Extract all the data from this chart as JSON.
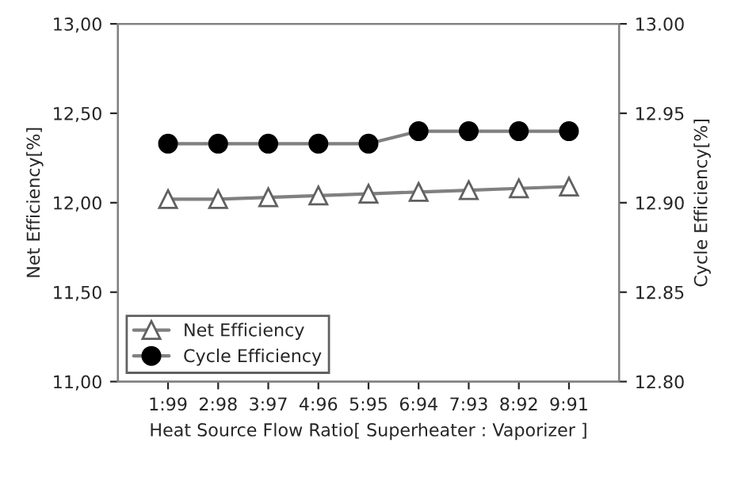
{
  "chart_data": {
    "type": "line",
    "xlabel": "Heat Source Flow Ratio[ Superheater : Vaporizer ]",
    "ylabel": "Net Efficiency[%]",
    "y2label": "Cycle Efficiency[%]",
    "categories": [
      "1:99",
      "2:98",
      "3:97",
      "4:96",
      "5:95",
      "6:94",
      "7:93",
      "8:92",
      "9:91"
    ],
    "series": [
      {
        "name": "Net Efficiency",
        "color": "#808080",
        "marker": "triangle",
        "values": [
          12.02,
          12.02,
          12.03,
          12.04,
          12.05,
          12.06,
          12.07,
          12.08,
          12.09
        ]
      },
      {
        "name": "Cycle Efficiency",
        "color": "#000000",
        "marker": "circle",
        "axis": "y2",
        "values": [
          12.933,
          12.933,
          12.933,
          12.933,
          12.933,
          12.94,
          12.94,
          12.94,
          12.94
        ]
      }
    ],
    "ylim": [
      11.0,
      13.0
    ],
    "yticks": [
      {
        "value": 11.0,
        "label": "11,00"
      },
      {
        "value": 11.5,
        "label": "11,50"
      },
      {
        "value": 12.0,
        "label": "12,00"
      },
      {
        "value": 12.5,
        "label": "12,50"
      },
      {
        "value": 13.0,
        "label": "13,00"
      }
    ],
    "y2lim": [
      12.8,
      13.0
    ],
    "y2ticks": [
      {
        "value": 12.8,
        "label": "12.80"
      },
      {
        "value": 12.85,
        "label": "12.85"
      },
      {
        "value": 12.9,
        "label": "12.90"
      },
      {
        "value": 12.95,
        "label": "12.95"
      },
      {
        "value": 13.0,
        "label": "13.00"
      }
    ],
    "grid": false,
    "legend": "bottom left",
    "line_style": "solid"
  }
}
